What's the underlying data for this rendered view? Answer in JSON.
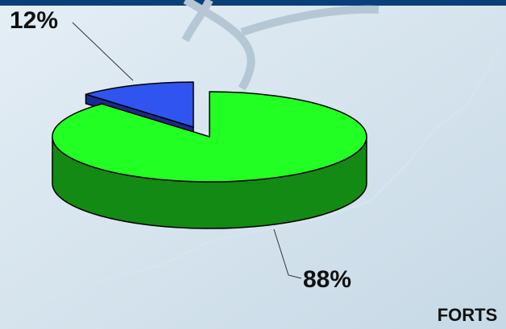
{
  "chart_data": {
    "type": "pie",
    "values": [
      12,
      88
    ],
    "value_labels": [
      "12%",
      "88%"
    ],
    "colors": [
      "#2f54f0",
      "#22ff22"
    ],
    "side_colors": [
      "#1a2a90",
      "#138a13"
    ],
    "annotation": "FORTS"
  }
}
